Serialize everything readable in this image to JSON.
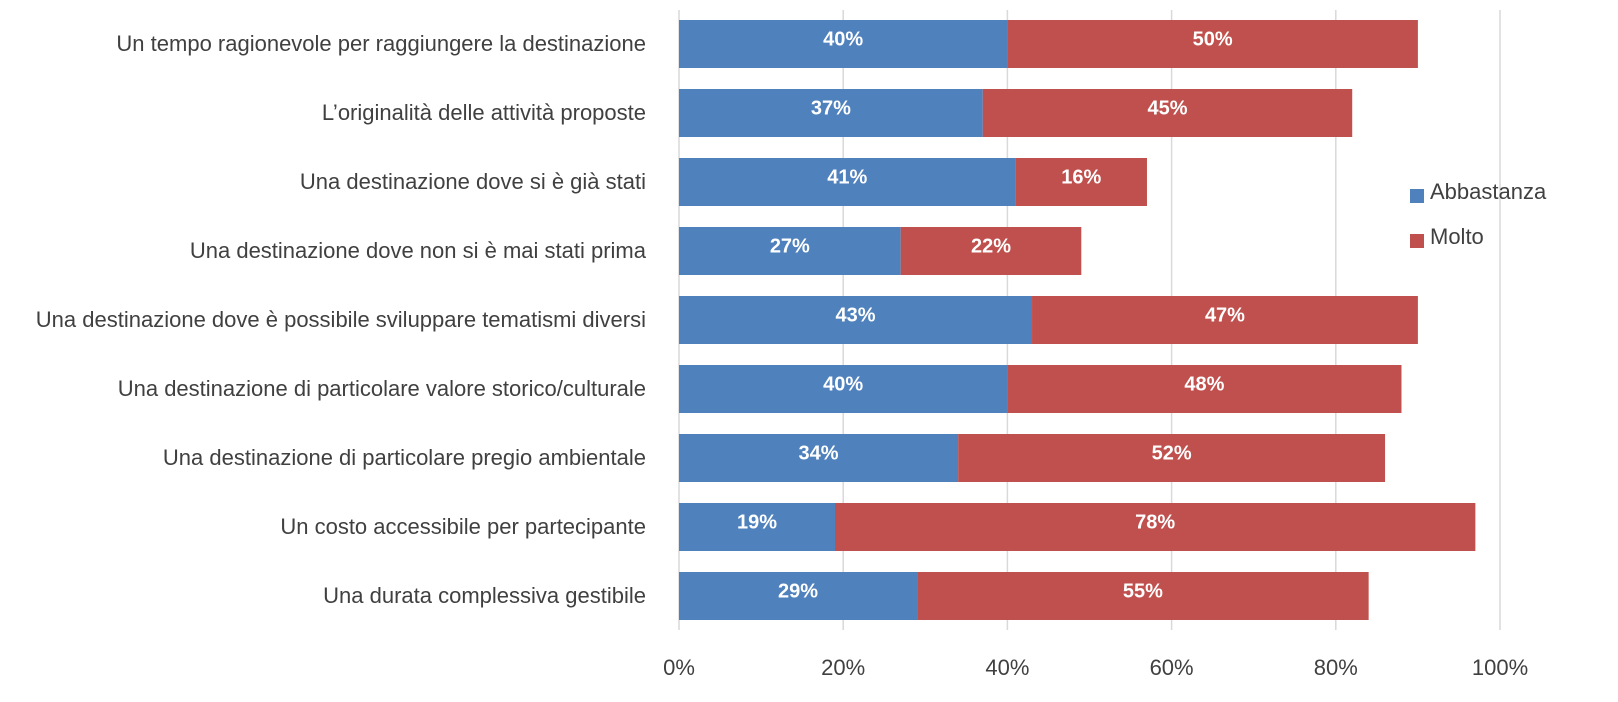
{
  "chart_data": {
    "type": "stacked-bar-horizontal",
    "categories": [
      "Un tempo ragionevole per raggiungere la destinazione",
      "L’originalità delle attività proposte",
      "Una destinazione dove si è già stati",
      "Una destinazione dove non si è mai stati prima",
      "Una destinazione dove è possibile sviluppare tematismi diversi",
      "Una destinazione di particolare valore storico/culturale",
      "Una destinazione di particolare pregio ambientale",
      "Un costo accessibile per partecipante",
      "Una durata complessiva gestibile"
    ],
    "series": [
      {
        "name": "Abbastanza",
        "color": "#4f81bd",
        "values": [
          40,
          37,
          41,
          27,
          43,
          40,
          34,
          19,
          29
        ],
        "value_labels": [
          "40%",
          "37%",
          "41%",
          "27%",
          "43%",
          "40%",
          "34%",
          "19%",
          "29%"
        ]
      },
      {
        "name": "Molto",
        "color": "#c0504d",
        "values": [
          50,
          45,
          16,
          22,
          47,
          48,
          52,
          78,
          55
        ],
        "value_labels": [
          "50%",
          "45%",
          "16%",
          "22%",
          "47%",
          "48%",
          "52%",
          "78%",
          "55%"
        ]
      }
    ],
    "xlim": [
      0,
      100
    ],
    "xticks": [
      {
        "value": 0,
        "label": "0%"
      },
      {
        "value": 20,
        "label": "20%"
      },
      {
        "value": 40,
        "label": "40%"
      },
      {
        "value": 60,
        "label": "60%"
      },
      {
        "value": 80,
        "label": "80%"
      },
      {
        "value": 100,
        "label": "100%"
      }
    ],
    "grid": true,
    "legend": "right"
  }
}
